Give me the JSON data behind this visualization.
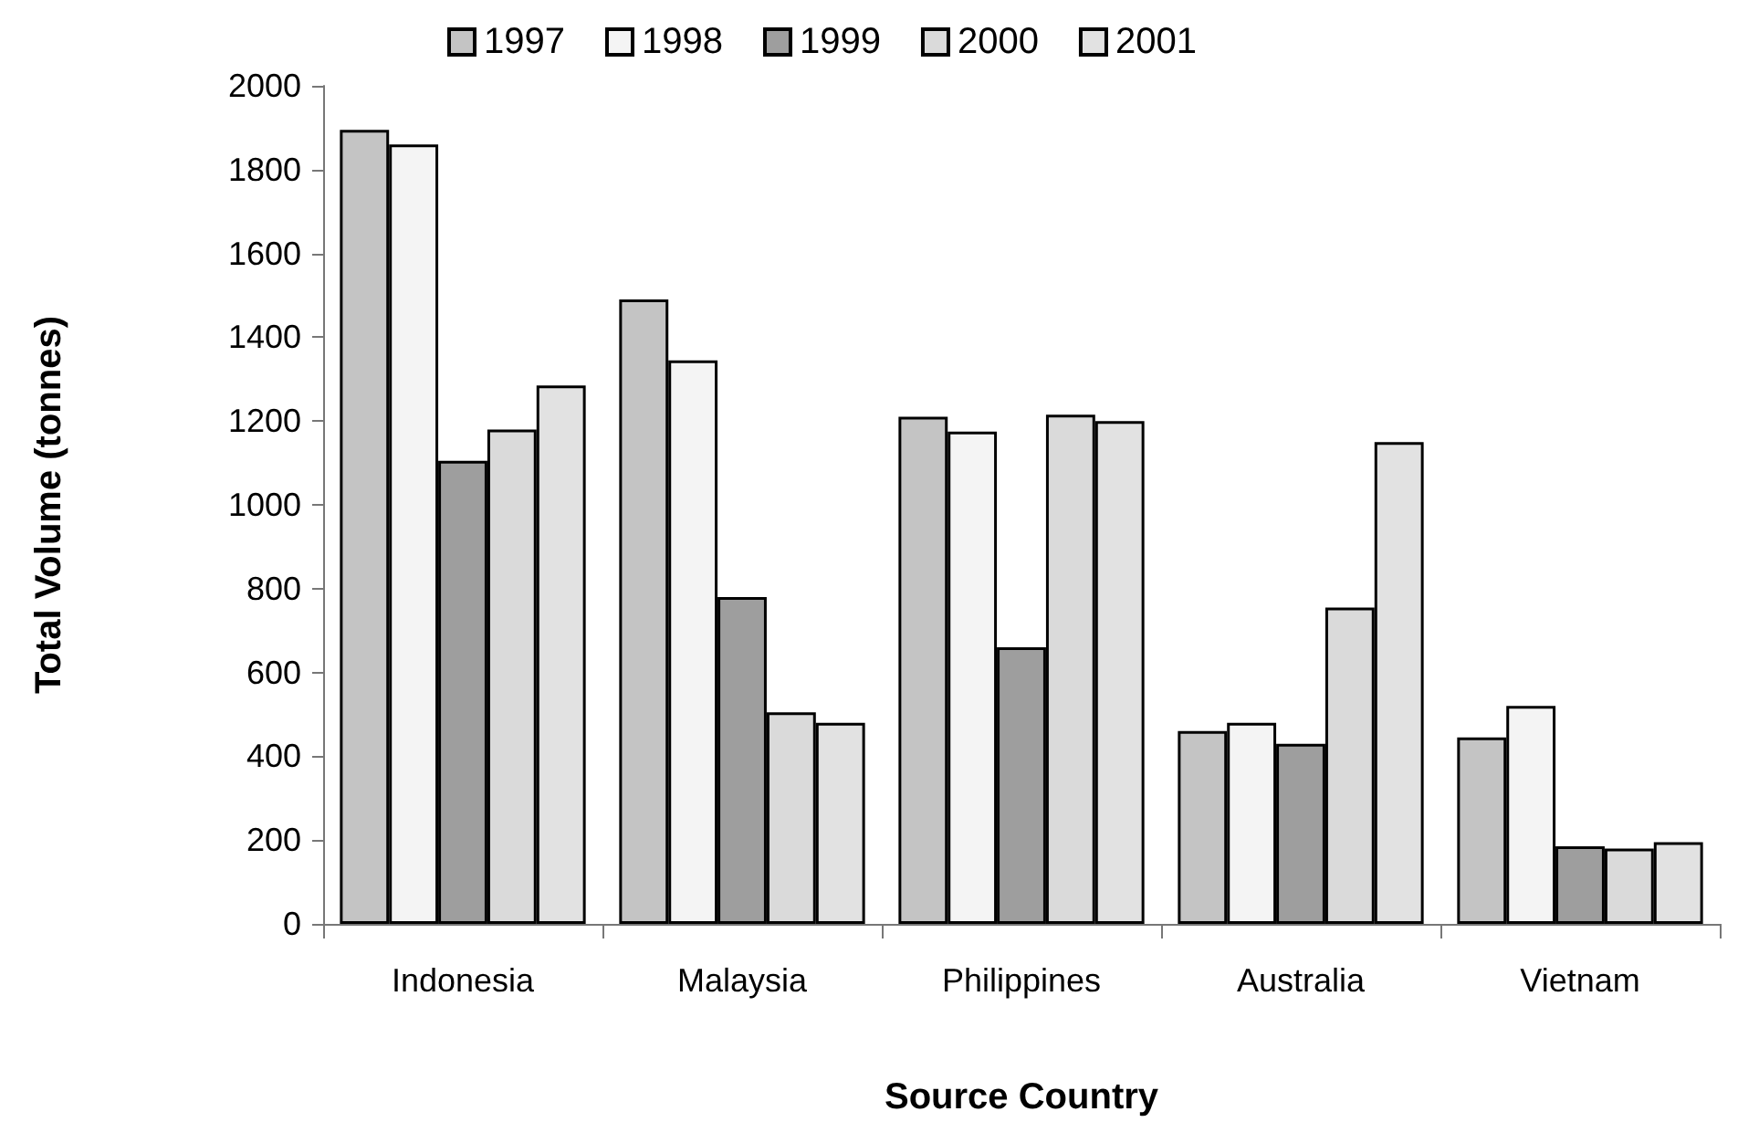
{
  "chart_data": {
    "type": "bar",
    "xlabel": "Source Country",
    "ylabel": "Total Volume (tonnes)",
    "categories": [
      "Indonesia",
      "Malaysia",
      "Philippines",
      "Australia",
      "Vietnam"
    ],
    "series": [
      {
        "name": "1997",
        "color": "#c4c4c4",
        "values": [
          1895,
          1490,
          1210,
          460,
          445
        ]
      },
      {
        "name": "1998",
        "color": "#f4f4f4",
        "values": [
          1860,
          1345,
          1175,
          480,
          520
        ]
      },
      {
        "name": "1999",
        "color": "#9e9e9e",
        "values": [
          1105,
          780,
          660,
          430,
          185
        ]
      },
      {
        "name": "2000",
        "color": "#dadada",
        "values": [
          1180,
          505,
          1215,
          755,
          180
        ]
      },
      {
        "name": "2001",
        "color": "#e2e2e2",
        "values": [
          1285,
          480,
          1200,
          1150,
          195
        ]
      }
    ],
    "ylim": [
      0,
      2000
    ],
    "yticks": [
      0,
      200,
      400,
      600,
      800,
      1000,
      1200,
      1400,
      1600,
      1800,
      2000
    ],
    "grid": false,
    "legend": "top"
  }
}
